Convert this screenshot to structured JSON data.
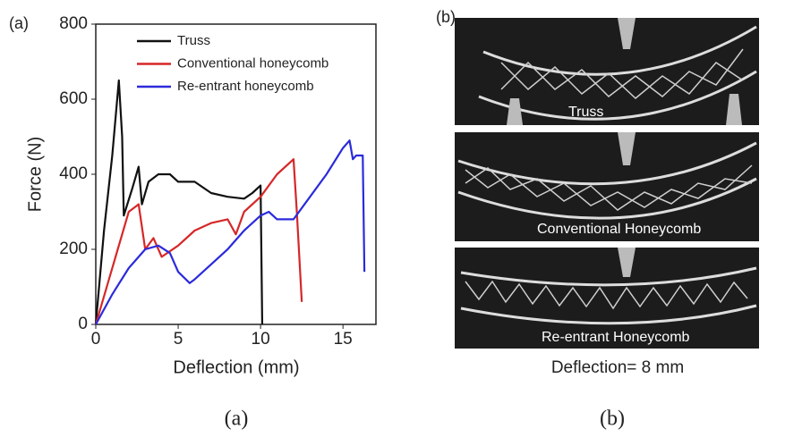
{
  "chart_data": {
    "type": "line",
    "panel_label": "(a)",
    "x_label": "Deflection (mm)",
    "y_label": "Force (N)",
    "xlim": [
      0,
      17
    ],
    "ylim": [
      0,
      800
    ],
    "xticks": [
      0,
      5,
      10,
      15
    ],
    "yticks": [
      0,
      200,
      400,
      600,
      800
    ],
    "legend": "upper left",
    "series": [
      {
        "name": "Truss",
        "color": "#111111",
        "x": [
          0,
          0.5,
          1,
          1.4,
          1.6,
          1.7,
          2.2,
          2.6,
          2.8,
          3.2,
          3.8,
          4.5,
          5,
          6,
          7,
          8,
          9,
          9.5,
          10,
          10.1
        ],
        "values": [
          0,
          250,
          450,
          650,
          500,
          290,
          360,
          420,
          320,
          380,
          400,
          400,
          380,
          380,
          350,
          340,
          335,
          350,
          370,
          0
        ]
      },
      {
        "name": "Conventional honeycomb",
        "color": "#d62728",
        "x": [
          0,
          1,
          2,
          2.6,
          3,
          3.5,
          4,
          5,
          6,
          7,
          8,
          8.5,
          9,
          10,
          11,
          12,
          12.2,
          12.5
        ],
        "values": [
          0,
          150,
          300,
          320,
          200,
          230,
          180,
          210,
          250,
          270,
          280,
          240,
          300,
          340,
          400,
          440,
          300,
          60
        ]
      },
      {
        "name": "Re-entrant honeycomb",
        "color": "#2b2bdc",
        "x": [
          0,
          1,
          2,
          3,
          3.8,
          4.5,
          5,
          5.7,
          6,
          7,
          8,
          9,
          10,
          10.5,
          11,
          12,
          13,
          14,
          15,
          15.4,
          15.6,
          15.8,
          16.2,
          16.3
        ],
        "values": [
          0,
          80,
          150,
          200,
          210,
          190,
          140,
          110,
          120,
          160,
          200,
          250,
          290,
          300,
          280,
          280,
          340,
          400,
          470,
          490,
          440,
          450,
          450,
          140
        ]
      }
    ]
  },
  "panel_b": {
    "label": "(b)",
    "photos": [
      "Truss",
      "Conventional Honeycomb",
      "Re-entrant Honeycomb"
    ],
    "caption": "Deflection= 8 mm"
  },
  "captions": [
    "(a)",
    "(b)"
  ]
}
